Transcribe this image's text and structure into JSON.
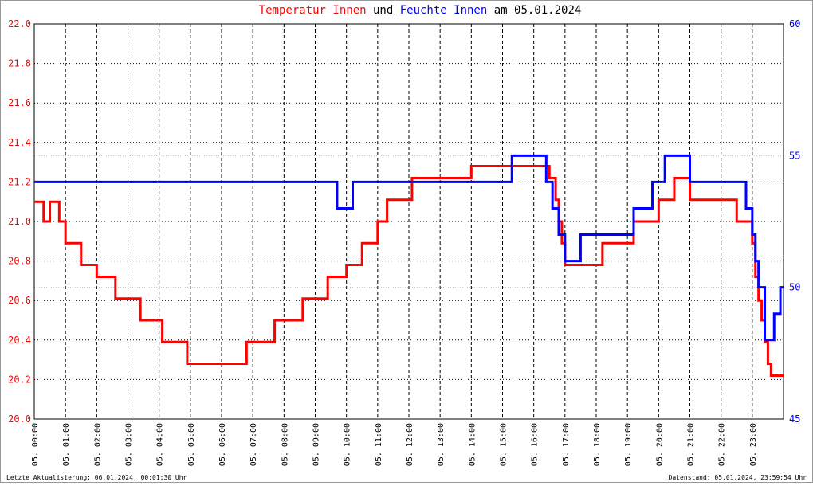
{
  "chart_data": {
    "type": "line",
    "step": true,
    "title_parts": [
      {
        "text": "Temperatur Innen",
        "color": "#ff0000"
      },
      {
        "text": "und",
        "color": "#000000"
      },
      {
        "text": "Feuchte Innen",
        "color": "#0000ff"
      },
      {
        "text": "am 05.01.2024",
        "color": "#000000"
      }
    ],
    "footer_left": "Letzte Aktualisierung: 06.01.2024, 00:01:30 Uhr",
    "footer_right": "Datenstand: 05.01.2024, 23:59:54 Uhr",
    "grid": true,
    "xlim": [
      0,
      24
    ],
    "xticks": [
      {
        "value": 0,
        "label": "05. 00:00"
      },
      {
        "value": 1,
        "label": "05. 01:00"
      },
      {
        "value": 2,
        "label": "05. 02:00"
      },
      {
        "value": 3,
        "label": "05. 03:00"
      },
      {
        "value": 4,
        "label": "05. 04:00"
      },
      {
        "value": 5,
        "label": "05. 05:00"
      },
      {
        "value": 6,
        "label": "05. 06:00"
      },
      {
        "value": 7,
        "label": "05. 07:00"
      },
      {
        "value": 8,
        "label": "05. 08:00"
      },
      {
        "value": 9,
        "label": "05. 09:00"
      },
      {
        "value": 10,
        "label": "05. 10:00"
      },
      {
        "value": 11,
        "label": "05. 11:00"
      },
      {
        "value": 12,
        "label": "05. 12:00"
      },
      {
        "value": 13,
        "label": "05. 13:00"
      },
      {
        "value": 14,
        "label": "05. 14:00"
      },
      {
        "value": 15,
        "label": "05. 15:00"
      },
      {
        "value": 16,
        "label": "05. 16:00"
      },
      {
        "value": 17,
        "label": "05. 17:00"
      },
      {
        "value": 18,
        "label": "05. 18:00"
      },
      {
        "value": 19,
        "label": "05. 19:00"
      },
      {
        "value": 20,
        "label": "05. 20:00"
      },
      {
        "value": 21,
        "label": "05. 21:00"
      },
      {
        "value": 22,
        "label": "05. 22:00"
      },
      {
        "value": 23,
        "label": "05. 23:00"
      }
    ],
    "ylim": [
      20,
      22
    ],
    "yticks": [
      {
        "value": 20,
        "label": "20.0"
      },
      20.2,
      20.4,
      20.6,
      20.8,
      {
        "value": 21,
        "label": "21.0"
      },
      21.2,
      21.4,
      21.6,
      21.8,
      {
        "value": 22,
        "label": "22.0"
      }
    ],
    "y_color": "#ff0000",
    "y2lim": [
      45,
      60
    ],
    "y2ticks": [
      45,
      50,
      55,
      60
    ],
    "y2_color": "#0000ff",
    "series": [
      {
        "name": "Temperatur Innen",
        "color": "#ff0000",
        "axis": "y",
        "x": [
          0,
          0.3,
          0.5,
          0.8,
          1.0,
          1.5,
          2.0,
          2.6,
          3.4,
          4.1,
          4.9,
          6.5,
          6.8,
          7.7,
          8.6,
          9.4,
          10.0,
          10.5,
          11.0,
          11.3,
          12.1,
          14.0,
          16.3,
          16.5,
          16.7,
          16.8,
          16.9,
          17.0,
          18.2,
          19.2,
          20.0,
          20.5,
          21.0,
          22.5,
          23.0,
          23.1,
          23.2,
          23.3,
          23.4,
          23.5,
          23.6,
          24
        ],
        "values": [
          21.1,
          21.0,
          21.1,
          21.0,
          20.89,
          20.78,
          20.72,
          20.61,
          20.5,
          20.39,
          20.28,
          20.28,
          20.39,
          20.5,
          20.61,
          20.72,
          20.78,
          20.89,
          21.0,
          21.11,
          21.22,
          21.28,
          21.28,
          21.22,
          21.11,
          21.0,
          20.89,
          20.78,
          20.89,
          21.0,
          21.11,
          21.22,
          21.11,
          21.0,
          20.89,
          20.72,
          20.6,
          20.5,
          20.39,
          20.28,
          20.22,
          20.22
        ]
      },
      {
        "name": "Feuchte Innen",
        "color": "#0000ff",
        "axis": "y2",
        "x": [
          0,
          9.7,
          10.2,
          15.3,
          16.3,
          16.4,
          16.6,
          16.8,
          17.0,
          17.5,
          19.2,
          19.8,
          20.2,
          21.0,
          22.7,
          22.8,
          23.0,
          23.1,
          23.2,
          23.4,
          23.7,
          23.9,
          24
        ],
        "values": [
          54,
          53,
          54,
          55,
          55,
          54,
          53,
          52,
          51,
          52,
          53,
          54,
          55,
          54,
          54,
          53,
          52,
          51,
          50,
          48,
          49,
          50,
          50
        ]
      }
    ]
  }
}
